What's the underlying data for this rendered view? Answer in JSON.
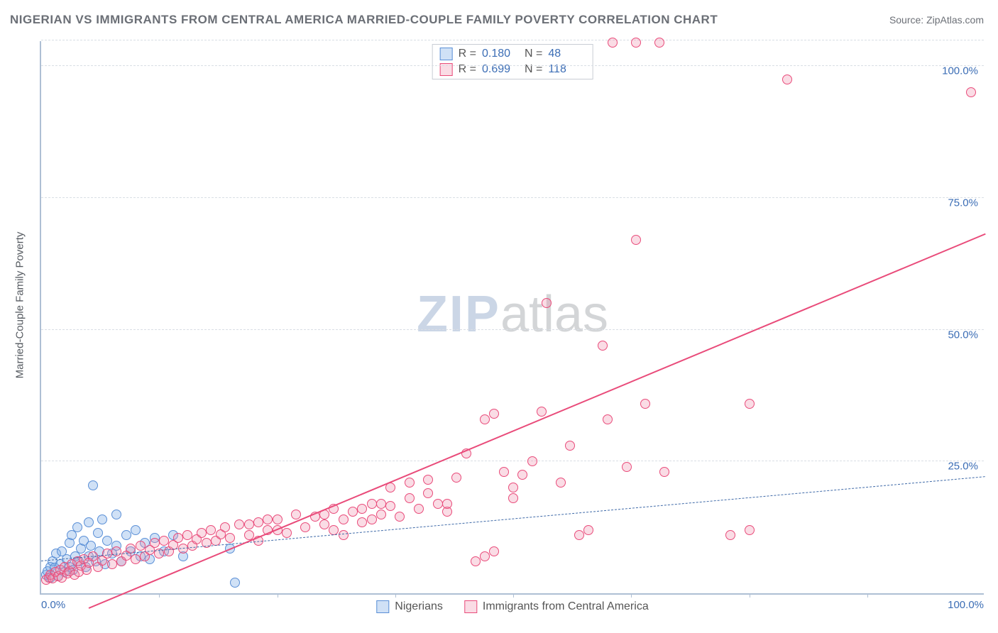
{
  "title": "NIGERIAN VS IMMIGRANTS FROM CENTRAL AMERICA MARRIED-COUPLE FAMILY POVERTY CORRELATION CHART",
  "source": "Source: ZipAtlas.com",
  "y_axis_label": "Married-Couple Family Poverty",
  "watermark_a": "ZIP",
  "watermark_b": "atlas",
  "chart": {
    "type": "scatter",
    "xlim": [
      0,
      100
    ],
    "ylim": [
      0,
      105
    ],
    "y_ticks": [
      25,
      50,
      75,
      100
    ],
    "y_tick_labels": [
      "25.0%",
      "50.0%",
      "75.0%",
      "100.0%"
    ],
    "x_tick_labels": [
      "0.0%",
      "100.0%"
    ],
    "x_minor_ticks": [
      12.5,
      25,
      37.5,
      50,
      62.5,
      75,
      87.5
    ],
    "grid_color": "#d9dee5",
    "axis_color": "#aebfd4",
    "tick_label_color": "#3b6db5",
    "background_color": "#ffffff",
    "marker_radius": 7,
    "marker_border_width": 1.2,
    "series": [
      {
        "id": "nigerians",
        "label": "Nigerians",
        "fill": "rgba(120,170,230,0.35)",
        "stroke": "#5a8fd6",
        "R": "0.180",
        "N": "48",
        "trend": {
          "x1": 0,
          "y1": 6.0,
          "x2": 100,
          "y2": 22.0,
          "color": "#3f6aa8",
          "width": 1.5,
          "dash": "6,5"
        },
        "points": [
          [
            0.5,
            3.5
          ],
          [
            0.7,
            4.2
          ],
          [
            1.0,
            5.0
          ],
          [
            1.0,
            3.0
          ],
          [
            1.2,
            6.0
          ],
          [
            1.4,
            4.8
          ],
          [
            1.6,
            7.5
          ],
          [
            1.8,
            3.2
          ],
          [
            2.0,
            5.5
          ],
          [
            2.2,
            8.0
          ],
          [
            2.5,
            4.0
          ],
          [
            2.7,
            6.5
          ],
          [
            3.0,
            9.5
          ],
          [
            3.0,
            5.0
          ],
          [
            3.2,
            11.0
          ],
          [
            3.4,
            4.5
          ],
          [
            3.6,
            7.0
          ],
          [
            3.8,
            12.5
          ],
          [
            4.0,
            6.0
          ],
          [
            4.2,
            8.5
          ],
          [
            4.5,
            10.0
          ],
          [
            4.7,
            5.0
          ],
          [
            5.0,
            13.5
          ],
          [
            5.0,
            7.0
          ],
          [
            5.3,
            9.0
          ],
          [
            5.5,
            20.5
          ],
          [
            5.8,
            6.0
          ],
          [
            6.0,
            11.5
          ],
          [
            6.2,
            8.0
          ],
          [
            6.5,
            14.0
          ],
          [
            6.8,
            5.5
          ],
          [
            7.0,
            10.0
          ],
          [
            7.5,
            7.5
          ],
          [
            8.0,
            9.0
          ],
          [
            8.0,
            15.0
          ],
          [
            8.5,
            6.0
          ],
          [
            9.0,
            11.0
          ],
          [
            9.5,
            8.0
          ],
          [
            10.0,
            12.0
          ],
          [
            10.5,
            7.0
          ],
          [
            11.0,
            9.5
          ],
          [
            11.5,
            6.5
          ],
          [
            12.0,
            10.5
          ],
          [
            13.0,
            8.0
          ],
          [
            14.0,
            11.0
          ],
          [
            15.0,
            7.0
          ],
          [
            20.0,
            8.5
          ],
          [
            20.5,
            2.0
          ]
        ]
      },
      {
        "id": "central_america",
        "label": "Immigrants from Central America",
        "fill": "rgba(240,140,170,0.30)",
        "stroke": "#e94b7a",
        "R": "0.699",
        "N": "118",
        "trend": {
          "x1": 5,
          "y1": -3,
          "x2": 100,
          "y2": 68,
          "color": "#e94b7a",
          "width": 2.5,
          "dash": ""
        },
        "points": [
          [
            0.5,
            2.5
          ],
          [
            0.8,
            3.0
          ],
          [
            1.0,
            3.5
          ],
          [
            1.2,
            2.8
          ],
          [
            1.5,
            4.0
          ],
          [
            1.8,
            3.2
          ],
          [
            2.0,
            4.5
          ],
          [
            2.2,
            3.0
          ],
          [
            2.5,
            5.0
          ],
          [
            2.8,
            3.8
          ],
          [
            3.0,
            4.2
          ],
          [
            3.2,
            5.5
          ],
          [
            3.5,
            3.5
          ],
          [
            3.8,
            6.0
          ],
          [
            4.0,
            4.0
          ],
          [
            4.2,
            5.2
          ],
          [
            4.5,
            6.5
          ],
          [
            4.8,
            4.5
          ],
          [
            5.0,
            5.8
          ],
          [
            5.5,
            7.0
          ],
          [
            6.0,
            5.0
          ],
          [
            6.5,
            6.2
          ],
          [
            7.0,
            7.5
          ],
          [
            7.5,
            5.5
          ],
          [
            8.0,
            8.0
          ],
          [
            8.5,
            6.0
          ],
          [
            9.0,
            7.2
          ],
          [
            9.5,
            8.5
          ],
          [
            10.0,
            6.5
          ],
          [
            10.5,
            9.0
          ],
          [
            11.0,
            7.0
          ],
          [
            11.5,
            8.2
          ],
          [
            12.0,
            9.5
          ],
          [
            12.5,
            7.5
          ],
          [
            13.0,
            10.0
          ],
          [
            13.5,
            8.0
          ],
          [
            14.0,
            9.2
          ],
          [
            14.5,
            10.5
          ],
          [
            15.0,
            8.5
          ],
          [
            15.5,
            11.0
          ],
          [
            16.0,
            9.0
          ],
          [
            16.5,
            10.2
          ],
          [
            17.0,
            11.5
          ],
          [
            17.5,
            9.5
          ],
          [
            18.0,
            12.0
          ],
          [
            18.5,
            10.0
          ],
          [
            19.0,
            11.2
          ],
          [
            19.5,
            12.5
          ],
          [
            20.0,
            10.5
          ],
          [
            21.0,
            13.0
          ],
          [
            22.0,
            11.0
          ],
          [
            23.0,
            13.5
          ],
          [
            24.0,
            12.0
          ],
          [
            25.0,
            14.0
          ],
          [
            26.0,
            11.5
          ],
          [
            27.0,
            15.0
          ],
          [
            28.0,
            12.5
          ],
          [
            29.0,
            14.5
          ],
          [
            30.0,
            13.0
          ],
          [
            31.0,
            16.0
          ],
          [
            32.0,
            14.0
          ],
          [
            33.0,
            15.5
          ],
          [
            34.0,
            13.5
          ],
          [
            35.0,
            17.0
          ],
          [
            36.0,
            15.0
          ],
          [
            37.0,
            16.5
          ],
          [
            38.0,
            14.5
          ],
          [
            39.0,
            18.0
          ],
          [
            40.0,
            16.0
          ],
          [
            41.0,
            21.5
          ],
          [
            42.0,
            17.0
          ],
          [
            43.0,
            15.5
          ],
          [
            44.0,
            22.0
          ],
          [
            45.0,
            26.5
          ],
          [
            46.0,
            6.0
          ],
          [
            47.0,
            7.0
          ],
          [
            48.0,
            8.0
          ],
          [
            49.0,
            23.0
          ],
          [
            47.0,
            33.0
          ],
          [
            48.0,
            34.0
          ],
          [
            50.0,
            20.0
          ],
          [
            51.0,
            22.5
          ],
          [
            52.0,
            25.0
          ],
          [
            53.0,
            34.5
          ],
          [
            53.5,
            55.0
          ],
          [
            55.0,
            21.0
          ],
          [
            56.0,
            28.0
          ],
          [
            57.0,
            11.0
          ],
          [
            58.0,
            12.0
          ],
          [
            59.5,
            47.0
          ],
          [
            60.0,
            33.0
          ],
          [
            62.0,
            24.0
          ],
          [
            63.0,
            67.0
          ],
          [
            64.0,
            36.0
          ],
          [
            60.5,
            104.5
          ],
          [
            63.0,
            104.5
          ],
          [
            65.5,
            104.5
          ],
          [
            66.0,
            23.0
          ],
          [
            75.0,
            36.0
          ],
          [
            79.0,
            97.5
          ],
          [
            73.0,
            11.0
          ],
          [
            75.0,
            12.0
          ],
          [
            98.5,
            95.0
          ],
          [
            50.0,
            18.0
          ],
          [
            37.0,
            20.0
          ],
          [
            39.0,
            21.0
          ],
          [
            41.0,
            19.0
          ],
          [
            43.0,
            17.0
          ],
          [
            30.0,
            15.0
          ],
          [
            31.0,
            12.0
          ],
          [
            32.0,
            11.0
          ],
          [
            34.0,
            16.0
          ],
          [
            35.0,
            14.0
          ],
          [
            36.0,
            17.0
          ],
          [
            22.0,
            13.0
          ],
          [
            23.0,
            10.0
          ],
          [
            24.0,
            14.0
          ],
          [
            25.0,
            12.0
          ]
        ]
      }
    ]
  }
}
